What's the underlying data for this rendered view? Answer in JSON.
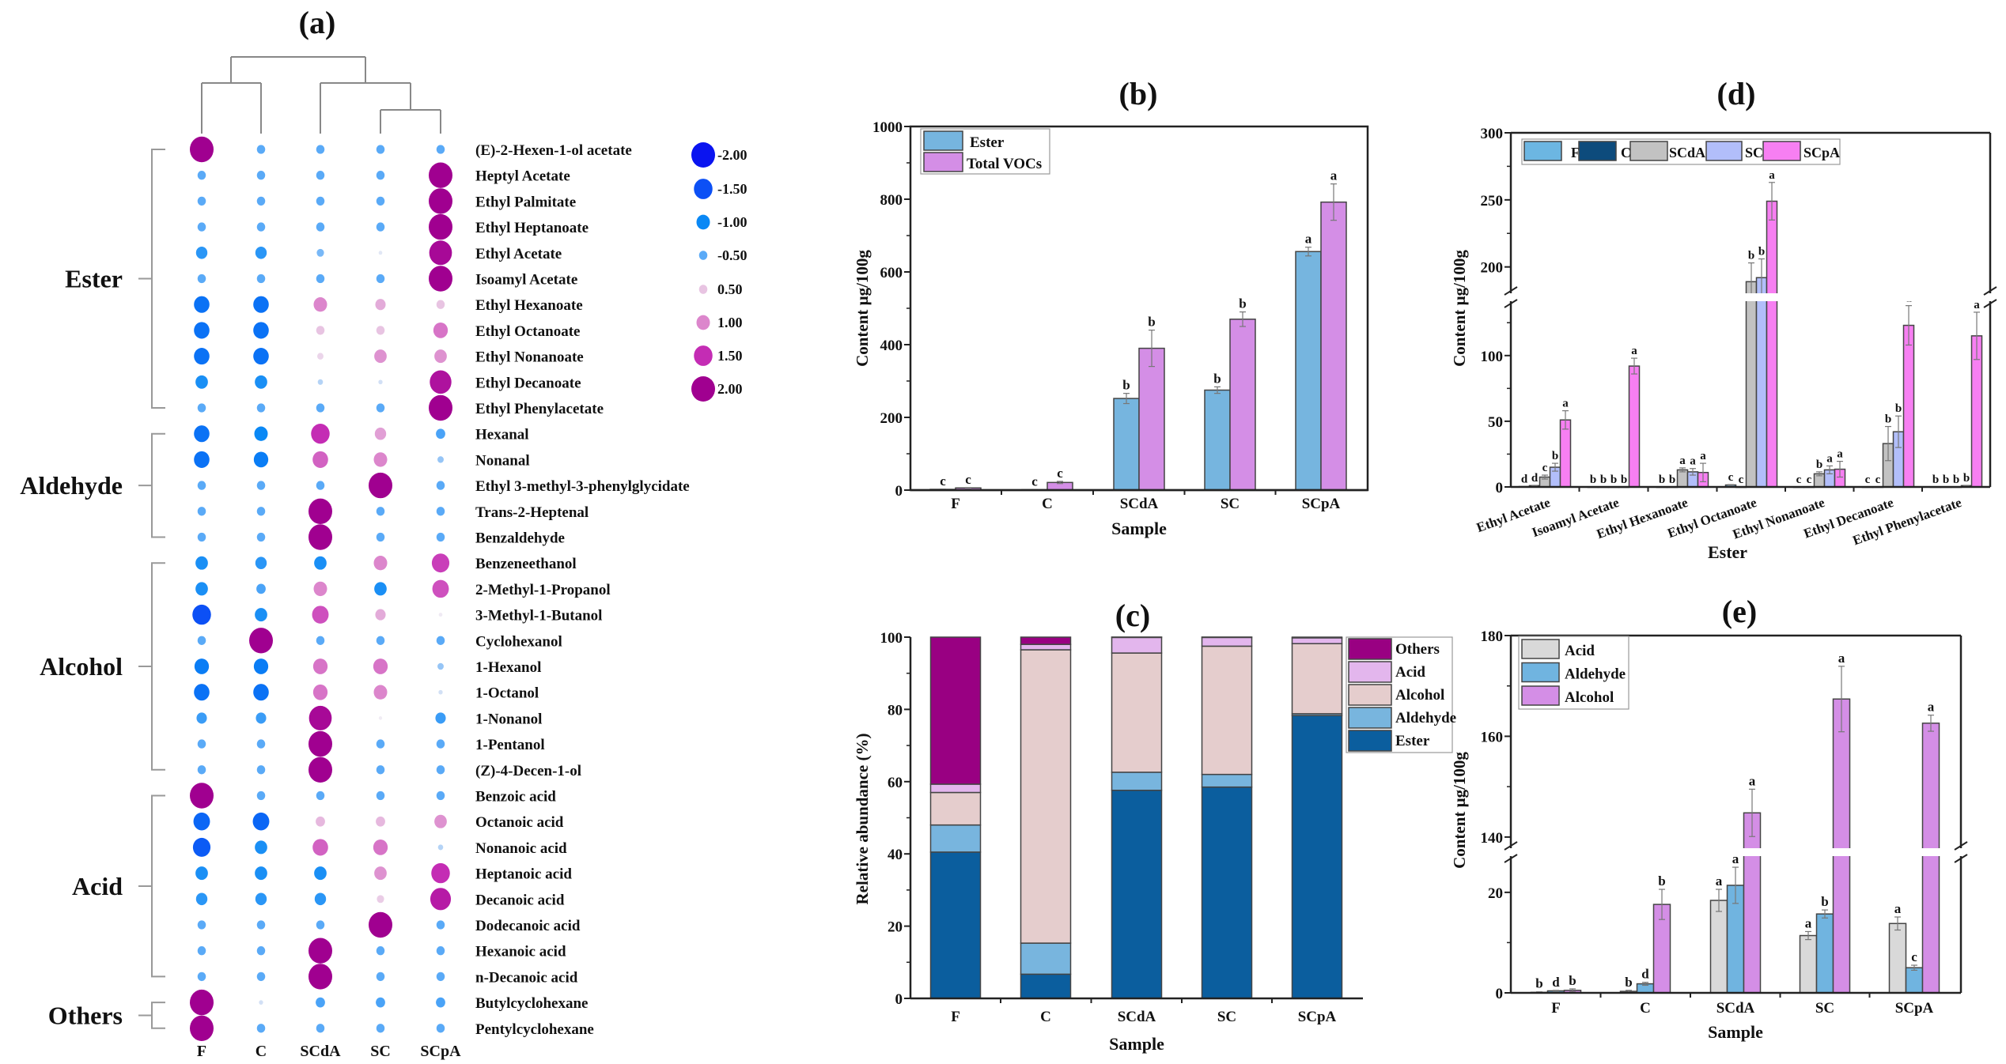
{
  "chart_data": [
    {
      "type": "bubble-heatmap",
      "title": "(a)",
      "columns": [
        "F",
        "C",
        "SCdA",
        "SC",
        "SCpA"
      ],
      "legend": [
        {
          "value": -2.0,
          "label": "-2.00"
        },
        {
          "value": -1.5,
          "label": "-1.50"
        },
        {
          "value": -1.0,
          "label": "-1.00"
        },
        {
          "value": -0.5,
          "label": "-0.50"
        },
        {
          "value": 0.5,
          "label": "0.50"
        },
        {
          "value": 1.0,
          "label": "1.00"
        },
        {
          "value": 1.5,
          "label": "1.50"
        },
        {
          "value": 2.0,
          "label": "2.00"
        }
      ],
      "groups": [
        {
          "name": "Ester",
          "rows": [
            {
              "name": "(E)-2-Hexen-1-ol acetate",
              "values": [
                2.0,
                -0.5,
                -0.5,
                -0.5,
                -0.5
              ]
            },
            {
              "name": "Heptyl Acetate",
              "values": [
                -0.5,
                -0.5,
                -0.5,
                -0.5,
                2.0
              ]
            },
            {
              "name": "Ethyl Palmitate",
              "values": [
                -0.5,
                -0.5,
                -0.5,
                -0.5,
                2.0
              ]
            },
            {
              "name": "Ethyl Heptanoate",
              "values": [
                -0.5,
                -0.5,
                -0.5,
                -0.5,
                2.0
              ]
            },
            {
              "name": "Ethyl Acetate",
              "values": [
                -0.8,
                -0.8,
                -0.4,
                -0.05,
                1.9
              ]
            },
            {
              "name": "Isoamyl Acetate",
              "values": [
                -0.5,
                -0.5,
                -0.5,
                -0.5,
                2.0
              ]
            },
            {
              "name": "Ethyl Hexanoate",
              "values": [
                -1.2,
                -1.2,
                1.0,
                0.7,
                0.5
              ]
            },
            {
              "name": "Ethyl Octanoate",
              "values": [
                -1.2,
                -1.2,
                0.5,
                0.5,
                1.1
              ]
            },
            {
              "name": "Ethyl Nonanoate",
              "values": [
                -1.2,
                -1.2,
                0.3,
                0.9,
                0.9
              ]
            },
            {
              "name": "Ethyl Decanoate",
              "values": [
                -0.9,
                -0.9,
                -0.2,
                -0.1,
                1.8
              ]
            },
            {
              "name": "Ethyl Phenylacetate",
              "values": [
                -0.5,
                -0.5,
                -0.5,
                -0.5,
                2.0
              ]
            }
          ]
        },
        {
          "name": "Aldehyde",
          "rows": [
            {
              "name": "Hexanal",
              "values": [
                -1.2,
                -1.0,
                1.5,
                0.8,
                -0.6
              ]
            },
            {
              "name": "Nonanal",
              "values": [
                -1.2,
                -1.1,
                1.2,
                1.0,
                -0.3
              ]
            },
            {
              "name": "Ethyl 3-methyl-3-phenylglycidate",
              "values": [
                -0.5,
                -0.5,
                -0.5,
                2.0,
                -0.5
              ]
            },
            {
              "name": "Trans-2-Heptenal",
              "values": [
                -0.5,
                -0.5,
                2.0,
                -0.5,
                -0.5
              ]
            },
            {
              "name": "Benzaldehyde",
              "values": [
                -0.5,
                -0.5,
                2.0,
                -0.5,
                -0.5
              ]
            }
          ]
        },
        {
          "name": "Alcohol",
          "rows": [
            {
              "name": "Benzeneethanol",
              "values": [
                -0.9,
                -0.8,
                -0.9,
                1.0,
                1.4
              ]
            },
            {
              "name": "2-Methyl-1-Propanol",
              "values": [
                -0.9,
                -0.6,
                1.0,
                -0.9,
                1.3
              ]
            },
            {
              "name": "3-Methyl-1-Butanol",
              "values": [
                -1.5,
                -0.9,
                1.3,
                0.7,
                0.05
              ]
            },
            {
              "name": "Cyclohexanol",
              "values": [
                -0.5,
                2.0,
                -0.5,
                -0.5,
                -0.5
              ]
            },
            {
              "name": "1-Hexanol",
              "values": [
                -1.1,
                -1.1,
                1.1,
                1.1,
                -0.3
              ]
            },
            {
              "name": "1-Octanol",
              "values": [
                -1.2,
                -1.2,
                1.1,
                1.0,
                -0.1
              ]
            },
            {
              "name": "1-Nonanol",
              "values": [
                -0.7,
                -0.7,
                1.9,
                0.02,
                -0.7
              ]
            },
            {
              "name": "1-Pentanol",
              "values": [
                -0.5,
                -0.5,
                2.0,
                -0.5,
                -0.5
              ]
            },
            {
              "name": "(Z)-4-Decen-1-ol",
              "values": [
                -0.5,
                -0.5,
                2.0,
                -0.5,
                -0.5
              ]
            }
          ]
        },
        {
          "name": "Acid",
          "rows": [
            {
              "name": "Benzoic acid",
              "values": [
                2.0,
                -0.5,
                -0.5,
                -0.5,
                -0.5
              ]
            },
            {
              "name": "Octanoic acid",
              "values": [
                -1.3,
                -1.3,
                0.6,
                0.6,
                0.9
              ]
            },
            {
              "name": "Nonanoic acid",
              "values": [
                -1.4,
                -0.9,
                1.2,
                1.1,
                -0.2
              ]
            },
            {
              "name": "Heptanoic acid",
              "values": [
                -0.9,
                -0.9,
                -0.9,
                0.9,
                1.5
              ]
            },
            {
              "name": "Decanoic acid",
              "values": [
                -0.8,
                -0.8,
                -0.8,
                0.4,
                1.7
              ]
            },
            {
              "name": "Dodecanoic acid",
              "values": [
                -0.5,
                -0.5,
                -0.5,
                2.0,
                -0.5
              ]
            },
            {
              "name": "Hexanoic acid",
              "values": [
                -0.5,
                -0.5,
                2.0,
                -0.5,
                -0.5
              ]
            },
            {
              "name": "n-Decanoic acid",
              "values": [
                -0.5,
                -0.5,
                2.0,
                -0.5,
                -0.5
              ]
            }
          ]
        },
        {
          "name": "Others",
          "rows": [
            {
              "name": "Butylcyclohexane",
              "values": [
                2.0,
                -0.1,
                -0.6,
                -0.6,
                -0.6
              ]
            },
            {
              "name": "Pentylcyclohexane",
              "values": [
                2.0,
                -0.5,
                -0.5,
                -0.5,
                -0.5
              ]
            }
          ]
        }
      ]
    },
    {
      "type": "bar",
      "title": "(b)",
      "xlabel": "Sample",
      "ylabel": "Content μg/100g",
      "ylim": [
        0,
        1000
      ],
      "yticks": [
        "0",
        "200",
        "400",
        "600",
        "800",
        "1000"
      ],
      "categories": [
        "F",
        "C",
        "SCdA",
        "SC",
        "SCpA"
      ],
      "legend_position": "top-left",
      "series": [
        {
          "name": "Ester",
          "color": "#76b5df",
          "values": [
            2,
            1,
            252,
            275,
            656
          ],
          "errors": [
            0.5,
            0.5,
            14,
            9,
            12
          ],
          "letters": [
            "c",
            "c",
            "b",
            "b",
            "a"
          ]
        },
        {
          "name": "Total VOCs",
          "color": "#d48ee6",
          "values": [
            6,
            21,
            390,
            470,
            792
          ],
          "errors": [
            1,
            3,
            50,
            20,
            50
          ],
          "letters": [
            "c",
            "c",
            "b",
            "b",
            "a"
          ]
        }
      ]
    },
    {
      "type": "stacked-bar",
      "title": "(c)",
      "xlabel": "Sample",
      "ylabel": "Relative abundance (%)",
      "ylim": [
        0,
        100
      ],
      "yticks": [
        "0",
        "20",
        "40",
        "60",
        "80",
        "100"
      ],
      "categories": [
        "F",
        "C",
        "SCdA",
        "SC",
        "SCpA"
      ],
      "legend_position": "top-right",
      "series": [
        {
          "name": "Ester",
          "color": "#0b5e9e",
          "values": [
            40.5,
            6.7,
            57.6,
            58.5,
            78.3
          ]
        },
        {
          "name": "Aldehyde",
          "color": "#78b5de",
          "values": [
            7.5,
            8.6,
            5.0,
            3.5,
            0.5
          ]
        },
        {
          "name": "Alcohol",
          "color": "#e5cdcd",
          "values": [
            9.0,
            81.2,
            33.0,
            35.5,
            19.4
          ]
        },
        {
          "name": "Acid",
          "color": "#e3b6ed",
          "values": [
            2.3,
            1.5,
            4.4,
            2.5,
            1.6
          ]
        },
        {
          "name": "Others",
          "color": "#990082",
          "values": [
            40.7,
            2.0,
            0.0,
            0.0,
            0.2
          ]
        }
      ]
    },
    {
      "type": "bar",
      "title": "(d)",
      "xlabel": "Ester",
      "ylabel": "Content μg/100g",
      "ylim": [
        0,
        300
      ],
      "axis_break": [
        145,
        178
      ],
      "yticks": [
        "0",
        "50",
        "100",
        "200",
        "250",
        "300"
      ],
      "categories": [
        "Ethyl Acetate",
        "Isoamyl Acetate",
        "Ethyl Hexanoate",
        "Ethyl Octanoate",
        "Ethyl Nonanoate",
        "Ethyl Decanoate",
        "Ethyl Phenylacetate"
      ],
      "legend_position": "top",
      "series": [
        {
          "name": "F",
          "color": "#6cb6e2",
          "values": [
            0.3,
            0,
            0,
            1.5,
            0,
            0,
            0
          ],
          "errors": [
            0,
            0,
            0,
            0.3,
            0,
            0,
            0
          ],
          "letters": [
            "d",
            "b",
            "b",
            "c",
            "c",
            "c",
            "b"
          ]
        },
        {
          "name": "C",
          "color": "#0d4b7c",
          "values": [
            1,
            0,
            0,
            0,
            0,
            0,
            0
          ],
          "errors": [
            0.2,
            0,
            0,
            0,
            0,
            0,
            0
          ],
          "letters": [
            "d",
            "b",
            "b",
            "c",
            "c",
            "c",
            "b"
          ]
        },
        {
          "name": "SCdA",
          "color": "#c2c2c2",
          "values": [
            7.5,
            0,
            13,
            189,
            10,
            33,
            0
          ],
          "errors": [
            1.5,
            0,
            1.5,
            14,
            1.5,
            13,
            0
          ],
          "letters": [
            "c",
            "b",
            "a",
            "b",
            "b",
            "b",
            "b"
          ]
        },
        {
          "name": "SC",
          "color": "#b2befa",
          "values": [
            15,
            0,
            11.5,
            192,
            13,
            42,
            1
          ],
          "errors": [
            3,
            0,
            2.5,
            14,
            3,
            12,
            0.2
          ],
          "letters": [
            "b",
            "b",
            "a",
            "b",
            "a",
            "b",
            "b"
          ]
        },
        {
          "name": "SCpA",
          "color": "#f77ff2",
          "values": [
            51,
            92,
            11,
            249,
            13.5,
            123,
            115
          ],
          "errors": [
            7,
            6,
            7,
            14,
            6,
            15,
            18
          ],
          "letters": [
            "a",
            "a",
            "a",
            "a",
            "a",
            "a",
            "a"
          ]
        }
      ]
    },
    {
      "type": "bar",
      "title": "(e)",
      "xlabel": "Sample",
      "ylabel": "Content μg/100g",
      "ylim": [
        0,
        180
      ],
      "axis_break": [
        28,
        137
      ],
      "yticks": [
        "0",
        "20",
        "140",
        "160",
        "180"
      ],
      "categories": [
        "F",
        "C",
        "SCdA",
        "SC",
        "SCpA"
      ],
      "legend_position": "top-left",
      "series": [
        {
          "name": "Acid",
          "color": "#d9d9d9",
          "values": [
            0.1,
            0.3,
            18.4,
            11.4,
            13.8
          ],
          "errors": [
            0.1,
            0.2,
            2.2,
            0.8,
            1.3
          ],
          "letters": [
            "b",
            "b",
            "a",
            "a",
            "a"
          ]
        },
        {
          "name": "Aldehyde",
          "color": "#70b4e0",
          "values": [
            0.4,
            1.8,
            21.4,
            15.7,
            5.0
          ],
          "errors": [
            0.1,
            0.3,
            3.6,
            0.8,
            0.5
          ],
          "letters": [
            "d",
            "d",
            "a",
            "b",
            "c"
          ]
        },
        {
          "name": "Alcohol",
          "color": "#d48ee6",
          "values": [
            0.5,
            17.6,
            144.8,
            167.4,
            162.6
          ],
          "errors": [
            0.3,
            3.0,
            4.7,
            6.5,
            1.6
          ],
          "letters": [
            "b",
            "b",
            "a",
            "a",
            "a"
          ]
        }
      ]
    }
  ]
}
